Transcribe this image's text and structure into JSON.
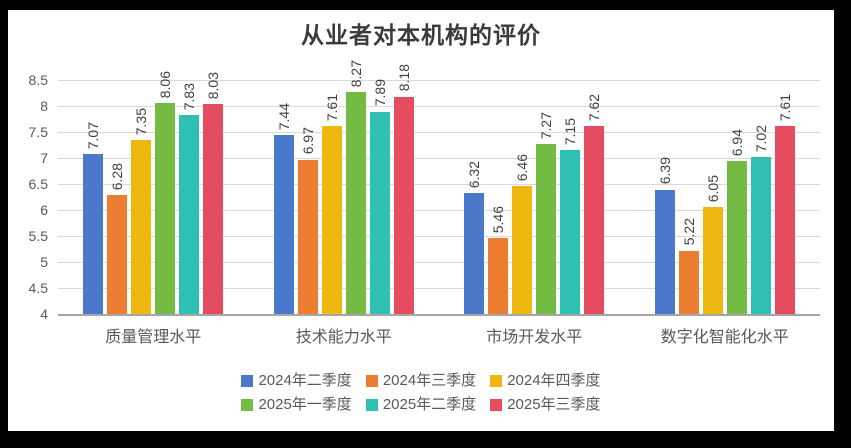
{
  "frame": {
    "border_color": "#000000",
    "panel_background": "#ffffff"
  },
  "chart_data": {
    "type": "bar",
    "title": "从业者对本机构的评价",
    "categories": [
      "质量管理水平",
      "技术能力水平",
      "市场开发水平",
      "数字化智能化水平"
    ],
    "series": [
      {
        "name": "2024年二季度",
        "color": "#4a79cb",
        "values": [
          7.07,
          7.44,
          6.32,
          6.39
        ]
      },
      {
        "name": "2024年三季度",
        "color": "#ed7d31",
        "values": [
          6.28,
          6.97,
          5.46,
          5.22
        ]
      },
      {
        "name": "2024年四季度",
        "color": "#eeb811",
        "values": [
          7.35,
          7.61,
          6.46,
          6.05
        ]
      },
      {
        "name": "2025年一季度",
        "color": "#74bb44",
        "values": [
          8.06,
          8.27,
          7.27,
          6.94
        ]
      },
      {
        "name": "2025年二季度",
        "color": "#2fbfb3",
        "values": [
          7.83,
          7.89,
          7.15,
          7.02
        ]
      },
      {
        "name": "2025年三季度",
        "color": "#e64c5f",
        "values": [
          8.03,
          8.18,
          7.62,
          7.61
        ]
      }
    ],
    "y_axis": {
      "min": 4,
      "max": 8.5,
      "step": 0.5,
      "tick_labels": [
        "8.5",
        "8",
        "7.5",
        "7",
        "6.5",
        "6",
        "5.5",
        "5",
        "4.5",
        "4"
      ]
    },
    "value_label_decimals": 2,
    "grid": true,
    "legend_position": "bottom",
    "legend_rows": [
      [
        0,
        1,
        2
      ],
      [
        3,
        4,
        5
      ]
    ],
    "colors": {
      "title_text": "#3b3b3b",
      "axis_text": "#595959",
      "value_label_text": "#404040",
      "gridline": "#d9d9d9",
      "axis_line": "#a6a6a6"
    }
  }
}
